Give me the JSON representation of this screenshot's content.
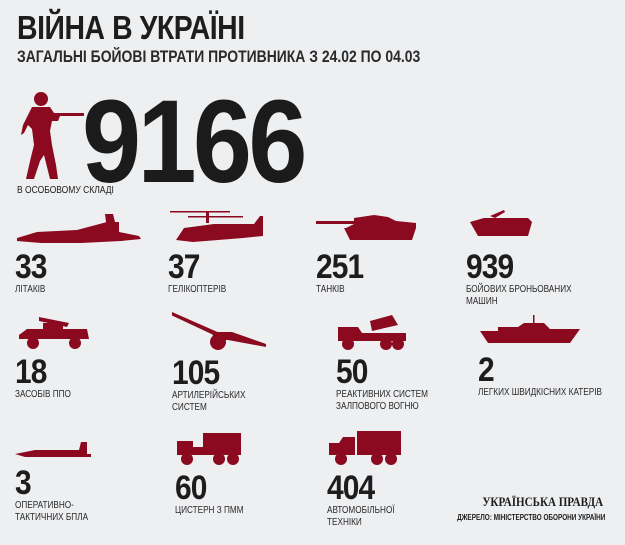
{
  "header": {
    "title": "ВІЙНА В УКРАЇНІ",
    "subtitle": "ЗАГАЛЬНІ БОЙОВІ ВТРАТИ ПРОТИВНИКА З 24.02 ПО 04.03"
  },
  "personnel": {
    "value": "9166",
    "label": "В ОСОБОВОМУ СКЛАДІ",
    "icon": "soldier-icon"
  },
  "items": [
    {
      "value": "33",
      "label": "ЛІТАКІВ",
      "icon": "jet-icon"
    },
    {
      "value": "37",
      "label": "ГЕЛІКОПТЕРІВ",
      "icon": "helicopter-icon"
    },
    {
      "value": "251",
      "label": "ТАНКІВ",
      "icon": "tank-icon"
    },
    {
      "value": "939",
      "label": "БОЙОВИХ БРОНЬОВАНИХ\nМАШИН",
      "icon": "armored-vehicle-icon"
    },
    {
      "value": "18",
      "label": "ЗАСОБІВ ППО",
      "icon": "air-defense-icon"
    },
    {
      "value": "105",
      "label": "АРТИЛЕРІЙСЬКИХ\nСИСТЕМ",
      "icon": "artillery-icon"
    },
    {
      "value": "50",
      "label": "РЕАКТИВНИХ СИСТЕМ\nЗАЛПОВОГО ВОГНЮ",
      "icon": "rocket-launcher-icon"
    },
    {
      "value": "2",
      "label": "ЛЕГКИХ ШВИДКІСНИХ КАТЕРІВ",
      "icon": "boat-icon"
    },
    {
      "value": "3",
      "label": "ОПЕРАТИВНО-\nТАКТИЧНИХ БПЛА",
      "icon": "drone-icon"
    },
    {
      "value": "60",
      "label": "ЦИСТЕРН З ПММ",
      "icon": "fuel-truck-icon"
    },
    {
      "value": "404",
      "label": "АВТОМОБІЛЬНОЇ\nТЕХНІКИ",
      "icon": "truck-icon"
    }
  ],
  "footer": {
    "logo": "УКРАЇНСЬКА ПРАВДА",
    "source": "ДЖЕРЕЛО: МІНІСТЕРСТВО ОБОРОНИ УКРАЇНИ"
  },
  "colors": {
    "accent": "#8b0a1f",
    "background": "#eeeff1",
    "text": "#1d1d1d"
  }
}
